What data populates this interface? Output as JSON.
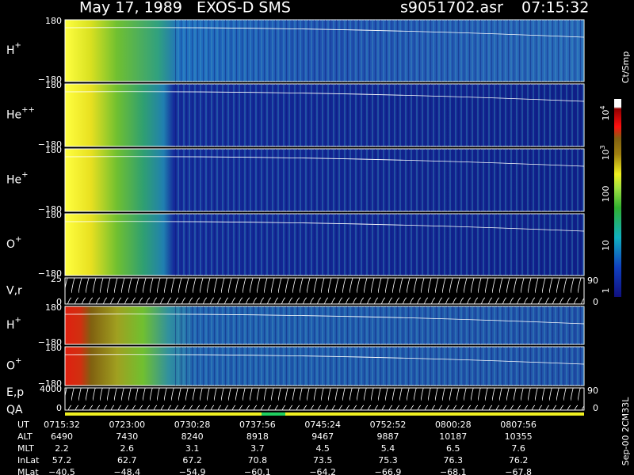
{
  "header": {
    "title": "May 17, 1989   EXOS-D SMS",
    "file": "s9051702.asr",
    "time": "07:15:32"
  },
  "panels": [
    {
      "label": "H",
      "sup": "+",
      "top": "180",
      "bottom": "−180"
    },
    {
      "label": "He",
      "sup": "++",
      "top": "180",
      "bottom": "−180"
    },
    {
      "label": "He",
      "sup": "+",
      "top": "180",
      "bottom": "−180"
    },
    {
      "label": "O",
      "sup": "+",
      "top": "180",
      "bottom": "−180"
    },
    {
      "label": "V,r",
      "top": "25",
      "bottom": "0",
      "right_top": "90",
      "right_bottom": "0"
    },
    {
      "label": "H",
      "sup": "+",
      "top": "180",
      "bottom": "−180"
    },
    {
      "label": "O",
      "sup": "+",
      "top": "180",
      "bottom": "−180"
    },
    {
      "label": "E,p",
      "label2": "QA",
      "top": "4000",
      "bottom": "0",
      "right_top": "90",
      "right_bottom": "0"
    }
  ],
  "colorbar": {
    "unit": "Ct/Smp",
    "ticks": [
      {
        "base": "10",
        "exp": "4"
      },
      {
        "base": "10",
        "exp": "3"
      },
      {
        "base": "100"
      },
      {
        "base": "10"
      },
      {
        "base": "1"
      }
    ]
  },
  "footer": {
    "rows": [
      {
        "label": "UT",
        "values": [
          "0715:32",
          "0723:00",
          "0730:28",
          "0737:56",
          "0745:24",
          "0752:52",
          "0800:28",
          "0807:56"
        ]
      },
      {
        "label": "ALT",
        "values": [
          "6490",
          "7430",
          "8240",
          "8918",
          "9467",
          "9887",
          "10187",
          "10355"
        ]
      },
      {
        "label": "MLT",
        "values": [
          "2.2",
          "2.6",
          "3.1",
          "3.7",
          "4.5",
          "5.4",
          "6.5",
          "7.6"
        ]
      },
      {
        "label": "InLat",
        "values": [
          "57.2",
          "62.7",
          "67.2",
          "70.8",
          "73.5",
          "75.3",
          "76.3",
          "76.2"
        ]
      },
      {
        "label": "MLat",
        "values": [
          "−40.5",
          "−48.4",
          "−54.9",
          "−60.1",
          "−64.2",
          "−66.9",
          "−68.1",
          "−67.8"
        ]
      }
    ]
  },
  "note": "Sep-00 2CM33L"
}
